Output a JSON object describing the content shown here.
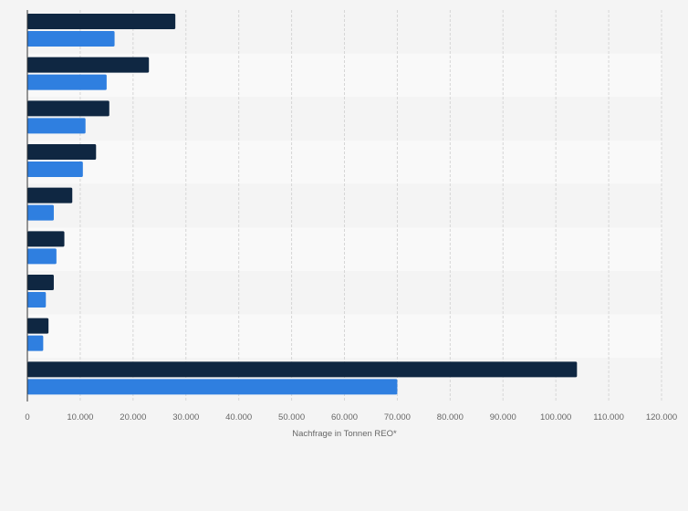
{
  "chart_data": {
    "type": "bar",
    "orientation": "horizontal",
    "categories": [
      "",
      "",
      "",
      "",
      "",
      "",
      "",
      "",
      ""
    ],
    "series": [
      {
        "name": "",
        "color": "#0f2742",
        "values": [
          28000,
          23000,
          15500,
          13000,
          8500,
          7000,
          5000,
          4000,
          104000
        ]
      },
      {
        "name": "",
        "color": "#2f7fe0",
        "values": [
          16500,
          15000,
          11000,
          10500,
          5000,
          5500,
          3500,
          3000,
          70000
        ]
      }
    ],
    "x_ticks": [
      {
        "value": 0,
        "label": "0"
      },
      {
        "value": 10000,
        "label": "10.000"
      },
      {
        "value": 20000,
        "label": "20.000"
      },
      {
        "value": 30000,
        "label": "30.000"
      },
      {
        "value": 40000,
        "label": "40.000"
      },
      {
        "value": 50000,
        "label": "50.000"
      },
      {
        "value": 60000,
        "label": "60.000"
      },
      {
        "value": 70000,
        "label": "70.000"
      },
      {
        "value": 80000,
        "label": "80.000"
      },
      {
        "value": 90000,
        "label": "90.000"
      },
      {
        "value": 100000,
        "label": "100.000"
      },
      {
        "value": 110000,
        "label": "110.000"
      },
      {
        "value": 120000,
        "label": "120.000"
      }
    ],
    "xlim": [
      0,
      120000
    ],
    "xlabel": "Nachfrage in Tonnen REO*",
    "title": "",
    "grid": true,
    "band_colors": [
      "#f4f4f4",
      "#f9f9f9"
    ],
    "grid_color": "#d6d6d6",
    "axis_color": "#333333"
  }
}
